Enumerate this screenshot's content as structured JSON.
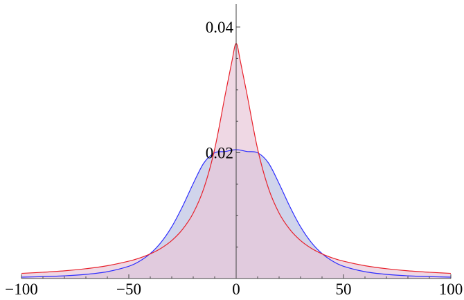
{
  "chart_data": {
    "type": "area",
    "title": "",
    "xlabel": "",
    "ylabel": "",
    "xlim": [
      -100,
      100
    ],
    "ylim": [
      0,
      0.04
    ],
    "x_ticks": [
      {
        "value": -100,
        "label": "−100"
      },
      {
        "value": -50,
        "label": "−50"
      },
      {
        "value": 0,
        "label": "0"
      },
      {
        "value": 50,
        "label": "50"
      },
      {
        "value": 100,
        "label": "100"
      }
    ],
    "y_ticks": [
      {
        "value": 0.02,
        "label": "0.02"
      },
      {
        "value": 0.04,
        "label": "0.04"
      }
    ],
    "grid": false,
    "legend": "none",
    "series": [
      {
        "color": "#2c2cff",
        "fill": "#c8cce8",
        "x": [
          -100,
          -90,
          -80,
          -70,
          -60,
          -50,
          -45,
          -40,
          -35,
          -30,
          -25,
          -20,
          -15,
          -10,
          -5,
          0,
          5,
          10,
          15,
          20,
          25,
          30,
          35,
          40,
          45,
          50,
          60,
          70,
          80,
          90,
          100
        ],
        "y": [
          0.00022,
          0.0003,
          0.00043,
          0.00066,
          0.00109,
          0.00195,
          0.00275,
          0.00397,
          0.00575,
          0.00823,
          0.01145,
          0.0151,
          0.0184,
          0.02,
          0.0202,
          0.0205,
          0.0202,
          0.02,
          0.0184,
          0.0151,
          0.01145,
          0.00823,
          0.00575,
          0.00397,
          0.00275,
          0.00195,
          0.00109,
          0.00066,
          0.00043,
          0.0003,
          0.00022
        ]
      },
      {
        "color": "#e8202a",
        "fill": "#e8c8d8",
        "x": [
          -100,
          -90,
          -80,
          -70,
          -60,
          -50,
          -45,
          -40,
          -35,
          -30,
          -25,
          -20,
          -15,
          -10,
          -5,
          -2,
          0,
          2,
          5,
          10,
          15,
          20,
          25,
          30,
          35,
          40,
          45,
          50,
          60,
          70,
          80,
          90,
          100
        ],
        "y": [
          0.00082,
          0.001,
          0.00123,
          0.00156,
          0.00204,
          0.00276,
          0.00326,
          0.00392,
          0.00481,
          0.00604,
          0.00781,
          0.0104,
          0.0144,
          0.0206,
          0.0294,
          0.0345,
          0.0374,
          0.0345,
          0.0294,
          0.0206,
          0.0144,
          0.0104,
          0.00781,
          0.00604,
          0.00481,
          0.00392,
          0.00326,
          0.00276,
          0.00204,
          0.00156,
          0.00123,
          0.001,
          0.00082
        ]
      }
    ]
  }
}
